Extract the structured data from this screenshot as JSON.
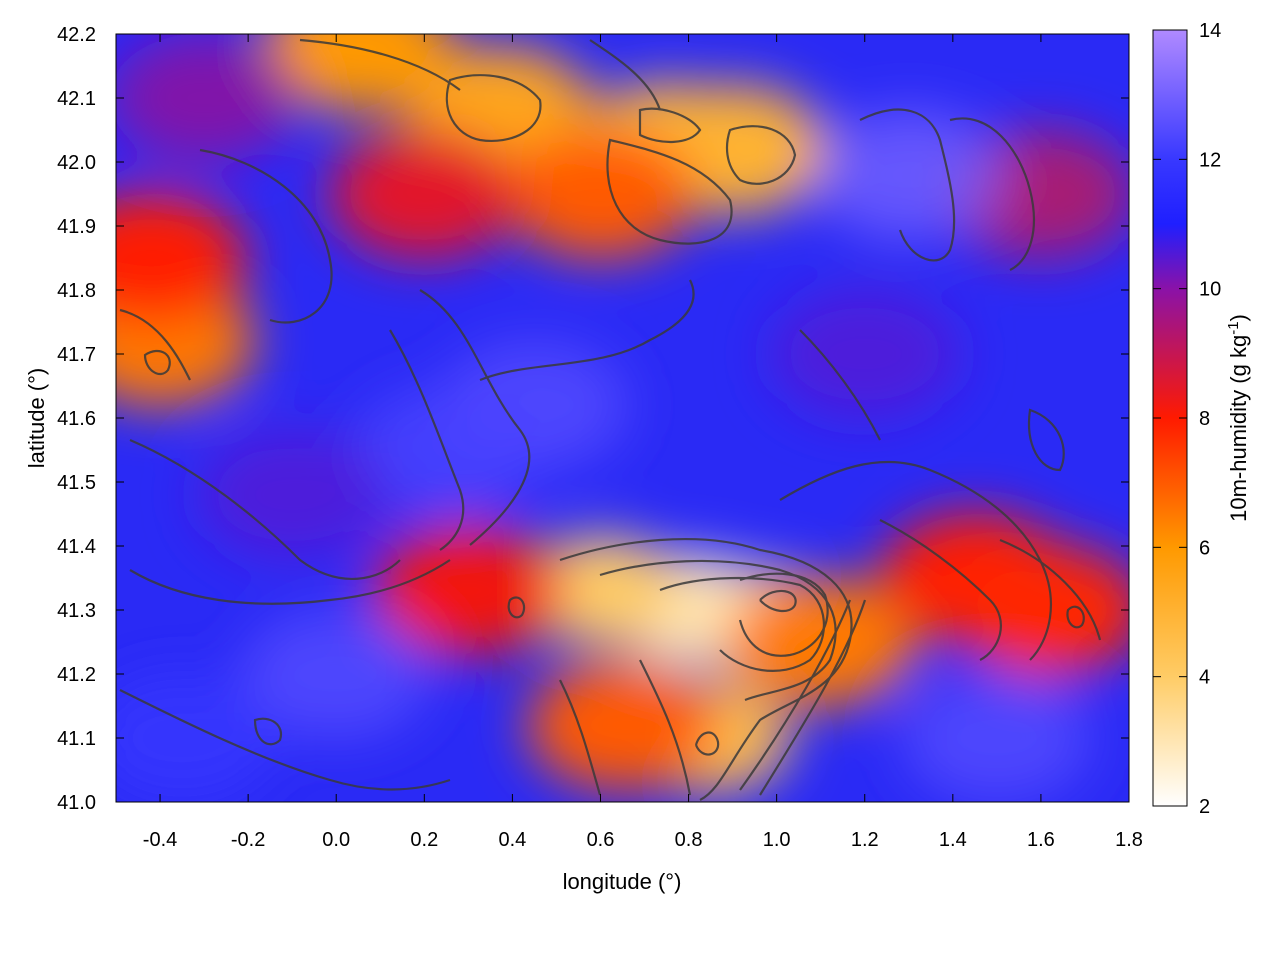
{
  "chart_data": {
    "type": "heatmap",
    "title": "",
    "xlabel": "longitude (°)",
    "ylabel": "latitude (°)",
    "xlim": [
      -0.5,
      1.8
    ],
    "ylim": [
      41.0,
      42.2
    ],
    "x_ticks": [
      -0.4,
      -0.2,
      0.0,
      0.2,
      0.4,
      0.6,
      0.8,
      1.0,
      1.2,
      1.4,
      1.6,
      1.8
    ],
    "x_tick_labels": [
      "-0.4",
      "-0.2",
      "0.0",
      "0.2",
      "0.4",
      "0.6",
      "0.8",
      "1.0",
      "1.2",
      "1.4",
      "1.6",
      "1.8"
    ],
    "y_ticks": [
      41.0,
      41.1,
      41.2,
      41.3,
      41.4,
      41.5,
      41.6,
      41.7,
      41.8,
      41.9,
      42.0,
      42.1,
      42.2
    ],
    "y_tick_labels": [
      "41.0",
      "41.1",
      "41.2",
      "41.3",
      "41.4",
      "41.5",
      "41.6",
      "41.7",
      "41.8",
      "41.9",
      "42.0",
      "42.1",
      "42.2"
    ],
    "colorbar": {
      "label": "10m-humidity (g kg",
      "label_exponent": "-1",
      "label_suffix": ")",
      "range": [
        2,
        14
      ],
      "ticks": [
        2,
        4,
        6,
        8,
        10,
        12,
        14
      ],
      "tick_labels": [
        "2",
        "4",
        "6",
        "8",
        "10",
        "12",
        "14"
      ],
      "colors": [
        {
          "value": 2,
          "color": "#ffffff"
        },
        {
          "value": 4,
          "color": "#ffcc66"
        },
        {
          "value": 6,
          "color": "#ff9900"
        },
        {
          "value": 8,
          "color": "#ff1a00"
        },
        {
          "value": 10,
          "color": "#8a12a8"
        },
        {
          "value": 11,
          "color": "#1f1fff"
        },
        {
          "value": 12,
          "color": "#3838ff"
        },
        {
          "value": 14,
          "color": "#b08aff"
        }
      ]
    },
    "field_features": [
      {
        "lon": 0.8,
        "lat": 41.3,
        "value": 2.8
      },
      {
        "lon": 0.95,
        "lat": 41.28,
        "value": 3.0
      },
      {
        "lon": 0.6,
        "lat": 41.33,
        "value": 4.0
      },
      {
        "lon": 0.85,
        "lat": 41.1,
        "value": 4.5
      },
      {
        "lon": 1.1,
        "lat": 41.25,
        "value": 6.5
      },
      {
        "lon": 0.65,
        "lat": 41.12,
        "value": 7.0
      },
      {
        "lon": 1.45,
        "lat": 41.35,
        "value": 8.0
      },
      {
        "lon": 1.62,
        "lat": 41.3,
        "value": 7.8
      },
      {
        "lon": 0.3,
        "lat": 41.33,
        "value": 8.2
      },
      {
        "lon": 0.75,
        "lat": 42.04,
        "value": 4.8
      },
      {
        "lon": 0.9,
        "lat": 42.02,
        "value": 5.0
      },
      {
        "lon": 0.37,
        "lat": 42.08,
        "value": 5.5
      },
      {
        "lon": 0.6,
        "lat": 41.95,
        "value": 7.0
      },
      {
        "lon": 0.2,
        "lat": 41.95,
        "value": 8.5
      },
      {
        "lon": 0.05,
        "lat": 42.18,
        "value": 6.0
      },
      {
        "lon": -0.4,
        "lat": 41.72,
        "value": 6.5
      },
      {
        "lon": -0.42,
        "lat": 41.85,
        "value": 8.0
      },
      {
        "lon": 1.6,
        "lat": 41.95,
        "value": 9.0
      },
      {
        "lon": 1.3,
        "lat": 41.98,
        "value": 13.0
      },
      {
        "lon": 0.45,
        "lat": 41.62,
        "value": 12.5
      },
      {
        "lon": 0.25,
        "lat": 41.55,
        "value": 12.3
      },
      {
        "lon": -0.1,
        "lat": 41.48,
        "value": 10.5
      },
      {
        "lon": 0.0,
        "lat": 41.2,
        "value": 12.5
      },
      {
        "lon": -0.35,
        "lat": 41.1,
        "value": 12.0
      },
      {
        "lon": 1.5,
        "lat": 41.1,
        "value": 12.5
      },
      {
        "lon": 1.2,
        "lat": 41.7,
        "value": 10.5
      },
      {
        "lon": -0.3,
        "lat": 42.1,
        "value": 9.8
      }
    ]
  }
}
